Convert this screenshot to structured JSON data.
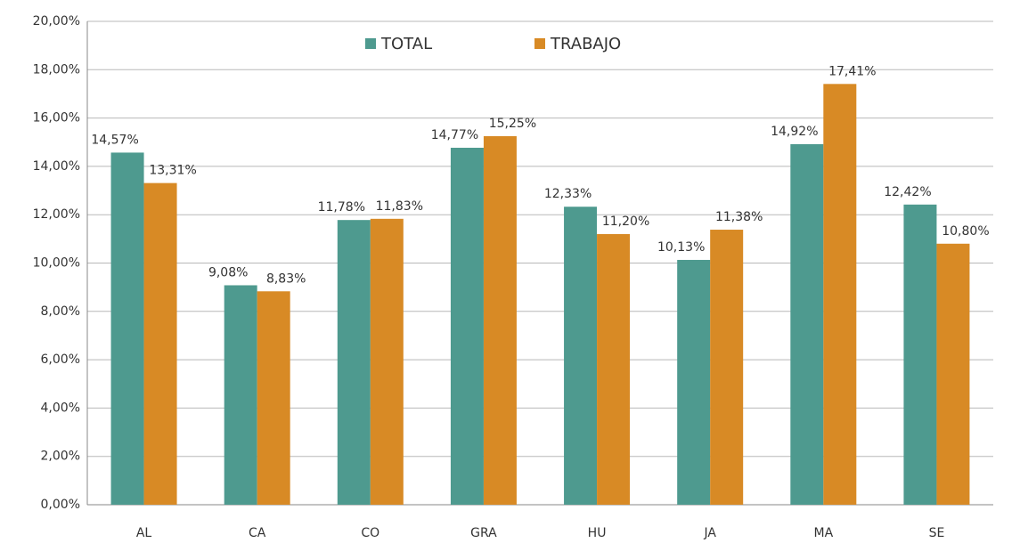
{
  "chart_data": {
    "type": "bar",
    "categories": [
      "AL",
      "CA",
      "CO",
      "GRA",
      "HU",
      "JA",
      "MA",
      "SE"
    ],
    "series": [
      {
        "name": "TOTAL",
        "color": "#4e9a8f",
        "values": [
          14.57,
          9.08,
          11.78,
          14.77,
          12.33,
          10.13,
          14.92,
          12.42
        ],
        "value_labels": [
          "14,57%",
          "9,08%",
          "11,78%",
          "14,77%",
          "12,33%",
          "10,13%",
          "14,92%",
          "12,42%"
        ]
      },
      {
        "name": "TRABAJO",
        "color": "#d88a25",
        "values": [
          13.31,
          8.83,
          11.83,
          15.25,
          11.2,
          11.38,
          17.41,
          10.8
        ],
        "value_labels": [
          "13,31%",
          "8,83%",
          "11,83%",
          "15,25%",
          "11,20%",
          "11,38%",
          "17,41%",
          "10,80%"
        ]
      }
    ],
    "ylim": [
      0,
      20
    ],
    "yticks": [
      {
        "value": 0,
        "label": "0,00%"
      },
      {
        "value": 2,
        "label": "2,00%"
      },
      {
        "value": 4,
        "label": "4,00%"
      },
      {
        "value": 6,
        "label": "6,00%"
      },
      {
        "value": 8,
        "label": "8,00%"
      },
      {
        "value": 10,
        "label": "10,00%"
      },
      {
        "value": 12,
        "label": "12,00%"
      },
      {
        "value": 14,
        "label": "14,00%"
      },
      {
        "value": 16,
        "label": "16,00%"
      },
      {
        "value": 18,
        "label": "18,00%"
      },
      {
        "value": 20,
        "label": "20,00%"
      }
    ],
    "grid": true,
    "legend": "top"
  }
}
